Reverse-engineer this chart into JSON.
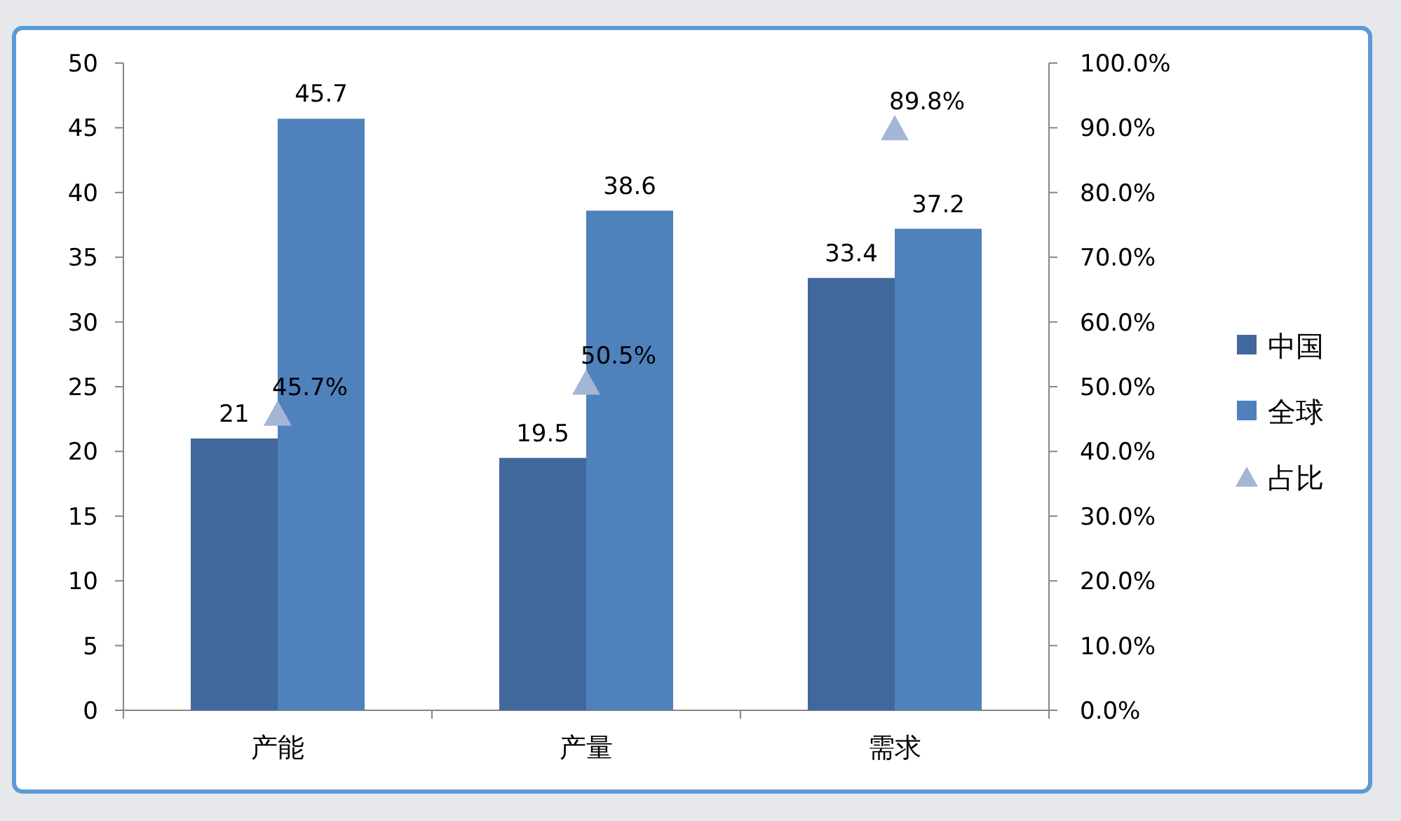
{
  "chart_data": {
    "type": "bar",
    "categories": [
      "产能",
      "产量",
      "需求"
    ],
    "series": [
      {
        "name": "中国",
        "color": "#41689c",
        "values": [
          21,
          19.5,
          33.4
        ],
        "value_labels": [
          "21",
          "19.5",
          "33.4"
        ]
      },
      {
        "name": "全球",
        "color": "#4f81bd",
        "values": [
          45.7,
          38.6,
          37.2
        ],
        "value_labels": [
          "45.7",
          "38.6",
          "37.2"
        ]
      },
      {
        "name": "占比",
        "type": "scatter",
        "axis": "y2",
        "marker": "triangle",
        "color": "#a5b5d6",
        "values": [
          45.7,
          50.5,
          89.8
        ],
        "value_labels": [
          "45.7%",
          "50.5%",
          "89.8%"
        ]
      }
    ],
    "ylim": [
      0,
      50
    ],
    "yticks": [
      0,
      5,
      10,
      15,
      20,
      25,
      30,
      35,
      40,
      45,
      50
    ],
    "y2lim": [
      0,
      100
    ],
    "y2ticks": [
      {
        "value": 0,
        "label": "0.0%"
      },
      {
        "value": 10,
        "label": "10.0%"
      },
      {
        "value": 20,
        "label": "20.0%"
      },
      {
        "value": 30,
        "label": "30.0%"
      },
      {
        "value": 40,
        "label": "40.0%"
      },
      {
        "value": 50,
        "label": "50.0%"
      },
      {
        "value": 60,
        "label": "60.0%"
      },
      {
        "value": 70,
        "label": "70.0%"
      },
      {
        "value": 80,
        "label": "80.0%"
      },
      {
        "value": 90,
        "label": "90.0%"
      },
      {
        "value": 100,
        "label": "100.0%"
      }
    ],
    "legend": "right"
  }
}
